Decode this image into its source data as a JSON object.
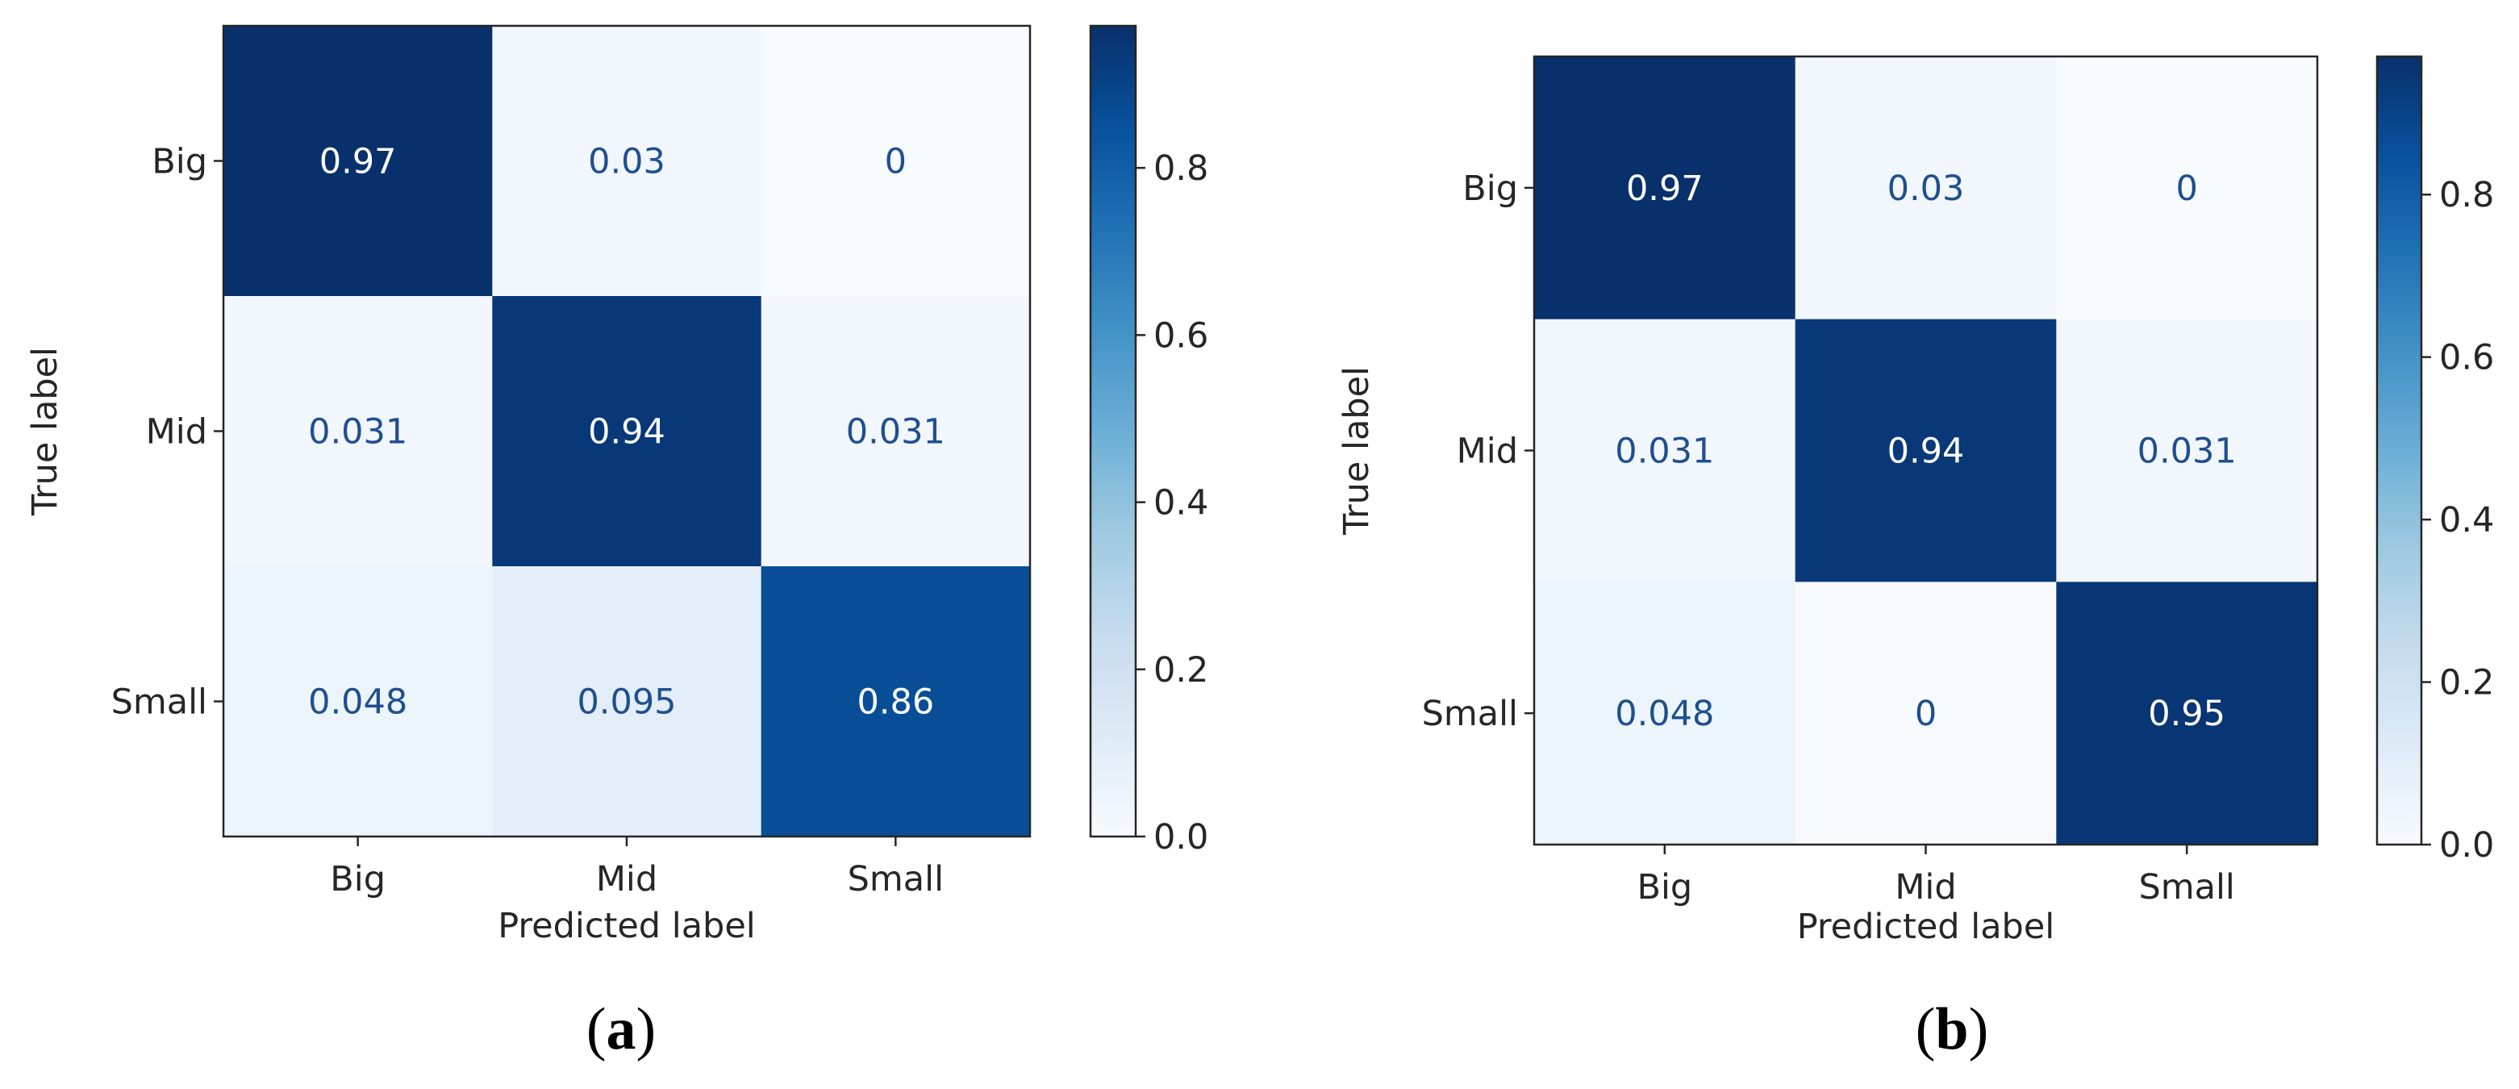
{
  "figure": {
    "panel_labels": [
      {
        "open": "(",
        "letter": "a",
        "close": ")"
      },
      {
        "open": "(",
        "letter": "b",
        "close": ")"
      }
    ]
  },
  "colors": {
    "cmap_stops": [
      "#f7fbff",
      "#deebf7",
      "#c6dbef",
      "#9ecae1",
      "#6baed6",
      "#4292c6",
      "#2171b5",
      "#08519c",
      "#08306b"
    ],
    "dark_text": "#1f4f8f",
    "light_text": "#ffffff",
    "axis": "#262626"
  },
  "chart_data": [
    {
      "type": "heatmap",
      "title": "",
      "xlabel": "Predicted label",
      "ylabel": "True label",
      "x_categories": [
        "Big",
        "Mid",
        "Small"
      ],
      "y_categories": [
        "Big",
        "Mid",
        "Small"
      ],
      "values": [
        [
          0.97,
          0.03,
          0
        ],
        [
          0.031,
          0.94,
          0.031
        ],
        [
          0.048,
          0.095,
          0.86
        ]
      ],
      "labels": [
        [
          "0.97",
          "0.03",
          "0"
        ],
        [
          "0.031",
          "0.94",
          "0.031"
        ],
        [
          "0.048",
          "0.095",
          "0.86"
        ]
      ],
      "colorbar": {
        "range": [
          0.0,
          0.97
        ],
        "ticks": [
          0.0,
          0.2,
          0.4,
          0.6,
          0.8
        ],
        "tick_labels": [
          "0.0",
          "0.2",
          "0.4",
          "0.6",
          "0.8"
        ]
      }
    },
    {
      "type": "heatmap",
      "title": "",
      "xlabel": "Predicted label",
      "ylabel": "True label",
      "x_categories": [
        "Big",
        "Mid",
        "Small"
      ],
      "y_categories": [
        "Big",
        "Mid",
        "Small"
      ],
      "values": [
        [
          0.97,
          0.03,
          0
        ],
        [
          0.031,
          0.94,
          0.031
        ],
        [
          0.048,
          0,
          0.95
        ]
      ],
      "labels": [
        [
          "0.97",
          "0.03",
          "0"
        ],
        [
          "0.031",
          "0.94",
          "0.031"
        ],
        [
          "0.048",
          "0",
          "0.95"
        ]
      ],
      "colorbar": {
        "range": [
          0.0,
          0.97
        ],
        "ticks": [
          0.0,
          0.2,
          0.4,
          0.6,
          0.8
        ],
        "tick_labels": [
          "0.0",
          "0.2",
          "0.4",
          "0.6",
          "0.8"
        ]
      }
    }
  ]
}
